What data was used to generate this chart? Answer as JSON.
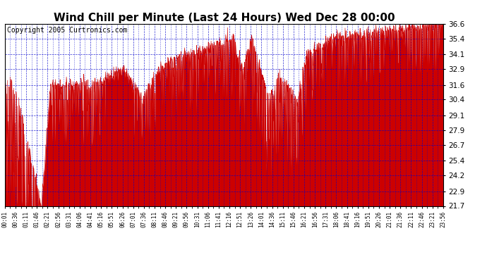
{
  "title": "Wind Chill per Minute (Last 24 Hours) Wed Dec 28 00:00",
  "copyright": "Copyright 2005 Curtronics.com",
  "yticks": [
    21.7,
    22.9,
    24.2,
    25.4,
    26.7,
    27.9,
    29.1,
    30.4,
    31.6,
    32.9,
    34.1,
    35.4,
    36.6
  ],
  "ymin": 21.7,
  "ymax": 36.6,
  "xtick_labels": [
    "00:01",
    "00:36",
    "01:11",
    "01:46",
    "02:21",
    "02:56",
    "03:31",
    "04:06",
    "04:41",
    "05:16",
    "05:51",
    "06:26",
    "07:01",
    "07:36",
    "08:11",
    "08:46",
    "09:21",
    "09:56",
    "10:31",
    "11:06",
    "11:41",
    "12:16",
    "12:51",
    "13:26",
    "14:01",
    "14:36",
    "15:11",
    "15:46",
    "16:21",
    "16:56",
    "17:31",
    "18:06",
    "18:41",
    "19:16",
    "19:51",
    "20:26",
    "21:01",
    "21:36",
    "22:11",
    "22:46",
    "23:21",
    "23:56"
  ],
  "line_color": "#cc0000",
  "fill_color": "#cc0000",
  "bg_color": "#ffffff",
  "plot_bg_color": "#ffffff",
  "grid_color": "#0000cc",
  "title_color": "#000000",
  "title_fontsize": 11,
  "copyright_fontsize": 7,
  "tick_label_color": "#000000",
  "figsize": [
    6.9,
    3.75
  ],
  "dpi": 100
}
